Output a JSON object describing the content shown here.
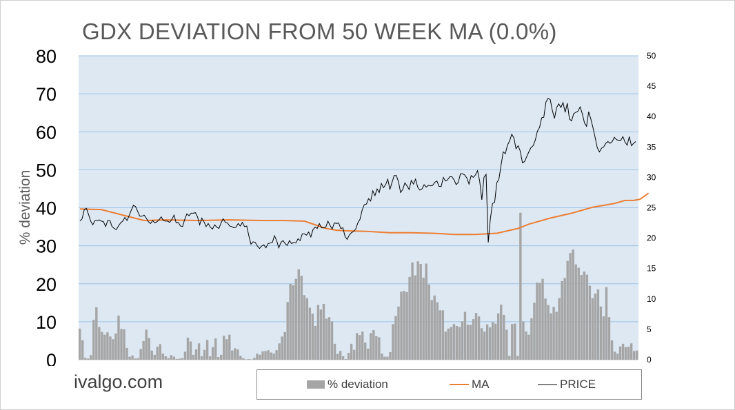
{
  "chart_data": {
    "type": "bar",
    "title": "GDX DEVIATION FROM 50 WEEK MA (0.0%)",
    "ylabel": "% deviation",
    "ylabel_right": "",
    "xlabel": "",
    "ylim": [
      0,
      80
    ],
    "ylim_right": [
      0,
      50
    ],
    "yticks_left": [
      0,
      10,
      20,
      30,
      40,
      50,
      60,
      70,
      80
    ],
    "yticks_right": [
      0,
      5,
      10,
      15,
      20,
      25,
      30,
      35,
      40,
      45,
      50
    ],
    "grid": true,
    "legend": [
      "% deviation",
      "MA",
      "PRICE"
    ],
    "legend_position": "bottom",
    "series": [
      {
        "name": "% deviation",
        "type": "bar",
        "axis": "left",
        "color": "#a5a5a5",
        "values": [
          8.2,
          5.1,
          0.5,
          0.3,
          1.2,
          10.5,
          13.8,
          8.6,
          7.3,
          6.6,
          7.2,
          6.1,
          5.4,
          6.9,
          11.6,
          8.1,
          8.0,
          3.1,
          0.8,
          1.1,
          0.3,
          0.4,
          2.8,
          4.9,
          7.9,
          5.7,
          2.4,
          1.3,
          3.4,
          4.1,
          1.6,
          0.9,
          0.4,
          1.2,
          0.8,
          0.2,
          0.3,
          0.4,
          2.1,
          5.8,
          4.8,
          1.3,
          2.7,
          4.3,
          0.9,
          2.6,
          5.2,
          0.9,
          3.3,
          5.6,
          0.7,
          1.3,
          6.3,
          5.4,
          6.6,
          2.4,
          3.0,
          2.7,
          1.0,
          0.4,
          0.1,
          0.2,
          0.1,
          0.5,
          1.6,
          1.3,
          2.2,
          2.3,
          2.5,
          1.9,
          1.6,
          2.5,
          4.3,
          6.1,
          7.3,
          15.2,
          20.0,
          19.6,
          21.3,
          23.8,
          22.1,
          17.0,
          16.2,
          13.7,
          12.1,
          8.9,
          14.4,
          13.2,
          14.7,
          10.8,
          11.2,
          10.1,
          4.2,
          1.5,
          2.3,
          0.9,
          0.2,
          1.8,
          4.2,
          2.6,
          7.0,
          6.5,
          7.4,
          4.5,
          2.9,
          7.0,
          7.8,
          6.2,
          5.9,
          1.6,
          0.8,
          0.8,
          2.0,
          9.4,
          11.5,
          14.0,
          17.9,
          18.1,
          17.8,
          21.8,
          25.6,
          22.2,
          25.9,
          25.2,
          21.6,
          25.3,
          19.8,
          15.7,
          16.9,
          15.1,
          13.0,
          13.0,
          7.4,
          8.2,
          8.6,
          9.4,
          8.9,
          8.6,
          10.1,
          12.6,
          9.2,
          9.2,
          10.7,
          12.3,
          11.4,
          8.3,
          7.4,
          9.3,
          8.5,
          9.9,
          9.5,
          12.2,
          14.5,
          11.8,
          7.9,
          1.0,
          9.4,
          9.5,
          1.0,
          38.7,
          10.1,
          7.4,
          6.6,
          10.9,
          15.0,
          20.3,
          20.2,
          21.3,
          16.1,
          14.4,
          12.2,
          13.9,
          12.6,
          16.2,
          20.7,
          21.5,
          26.0,
          28.1,
          29.0,
          25.1,
          24.2,
          22.3,
          23.2,
          22.4,
          19.5,
          16.2,
          17.4,
          18.5,
          14.0,
          11.4,
          19.1,
          11.2,
          5.1,
          2.1,
          1.6,
          3.5,
          4.2,
          3.3,
          3.4,
          4.3,
          2.3,
          2.4
        ]
      },
      {
        "name": "MA",
        "type": "line",
        "axis": "right",
        "color": "#ed7d31",
        "x_index": [
          0,
          10,
          20,
          30,
          40,
          55,
          70,
          85,
          95,
          105,
          115,
          120,
          125,
          135,
          145,
          155,
          165,
          175,
          185,
          195,
          205,
          210,
          215,
          220,
          225,
          230,
          235,
          240,
          245,
          250,
          255,
          259,
          262,
          266
        ],
        "values": [
          24.8,
          24.7,
          23.8,
          22.9,
          23.0,
          22.9,
          23.0,
          22.9,
          22.9,
          22.8,
          21.6,
          21.3,
          21.2,
          21.1,
          20.9,
          20.9,
          20.8,
          20.6,
          20.6,
          20.8,
          21.6,
          22.3,
          22.8,
          23.3,
          23.7,
          24.1,
          24.6,
          25.1,
          25.4,
          25.7,
          26.2,
          26.2,
          26.4,
          27.4
        ]
      },
      {
        "name": "PRICE",
        "type": "line",
        "axis": "right",
        "color": "#000000",
        "values": [
          22.8,
          23.2,
          24.7,
          24.9,
          23.9,
          22.8,
          22.2,
          22.9,
          22.9,
          23.0,
          22.8,
          22.7,
          21.9,
          22.9,
          22.9,
          21.9,
          21.6,
          21.4,
          22.0,
          22.5,
          22.8,
          23.4,
          22.9,
          23.7,
          24.6,
          25.4,
          25.2,
          24.4,
          23.6,
          23.6,
          23.8,
          23.3,
          22.7,
          22.4,
          22.9,
          22.5,
          22.7,
          23.0,
          23.5,
          22.9,
          22.8,
          22.8,
          22.6,
          23.1,
          23.8,
          22.5,
          22.6,
          22.0,
          21.9,
          23.1,
          24.0,
          23.7,
          24.1,
          24.1,
          24.2,
          23.5,
          22.2,
          23.3,
          22.7,
          21.9,
          22.4,
          21.8,
          21.5,
          22.2,
          21.8,
          21.6,
          22.5,
          23.2,
          22.6,
          22.5,
          22.0,
          21.9,
          21.7,
          21.8,
          22.4,
          22.0,
          22.6,
          21.9,
          22.0,
          20.4,
          19.0,
          19.4,
          19.3,
          18.7,
          18.3,
          18.7,
          18.9,
          18.4,
          19.1,
          19.2,
          19.3,
          20.4,
          19.6,
          18.4,
          19.3,
          19.6,
          19.1,
          18.8,
          19.6,
          19.1,
          19.3,
          19.2,
          19.9,
          19.6,
          20.7,
          20.7,
          20.5,
          21.0,
          20.2,
          21.4,
          21.8,
          21.6,
          22.4,
          21.7,
          21.7,
          21.8,
          22.8,
          22.1,
          21.5,
          22.5,
          22.4,
          22.5,
          21.6,
          21.7,
          20.3,
          19.8,
          20.5,
          20.9,
          21.1,
          21.5,
          22.5,
          23.1,
          24.6,
          25.5,
          25.6,
          26.5,
          26.1,
          27.8,
          27.0,
          28.1,
          27.5,
          29.0,
          28.3,
          28.8,
          29.7,
          28.0,
          29.2,
          30.3,
          30.3,
          29.3,
          27.5,
          28.0,
          29.1,
          28.6,
          28.0,
          29.5,
          28.9,
          29.7,
          28.4,
          27.9,
          28.1,
          28.8,
          28.4,
          28.7,
          28.6,
          28.7,
          29.2,
          29.4,
          28.5,
          28.5,
          30.0,
          29.4,
          29.6,
          30.1,
          30.1,
          29.6,
          28.8,
          29.2,
          30.6,
          30.6,
          30.4,
          29.9,
          28.9,
          30.3,
          30.0,
          30.4,
          31.1,
          29.4,
          26.3,
          30.0,
          30.5,
          19.3,
          23.2,
          25.7,
          25.9,
          29.1,
          29.7,
          32.0,
          34.2,
          33.9,
          35.3,
          36.0,
          37.1,
          36.5,
          34.7,
          35.2,
          34.3,
          32.4,
          32.6,
          33.4,
          34.2,
          34.9,
          35.2,
          36.1,
          37.6,
          38.2,
          39.8,
          39.9,
          42.4,
          43.0,
          42.8,
          41.0,
          39.7,
          41.5,
          42.1,
          41.5,
          42.3,
          40.7,
          42.2,
          39.6,
          39.3,
          40.5,
          40.7,
          40.9,
          41.6,
          40.5,
          39.0,
          38.4,
          40.8,
          39.6,
          38.2,
          36.6,
          34.9,
          34.2,
          34.8,
          35.0,
          35.6,
          35.9,
          35.6,
          35.9,
          36.6,
          36.2,
          36.1,
          36.1,
          36.7,
          35.8,
          35.3,
          36.7,
          35.2,
          35.6,
          35.9
        ]
      }
    ]
  },
  "watermark": "ivalgo.com"
}
